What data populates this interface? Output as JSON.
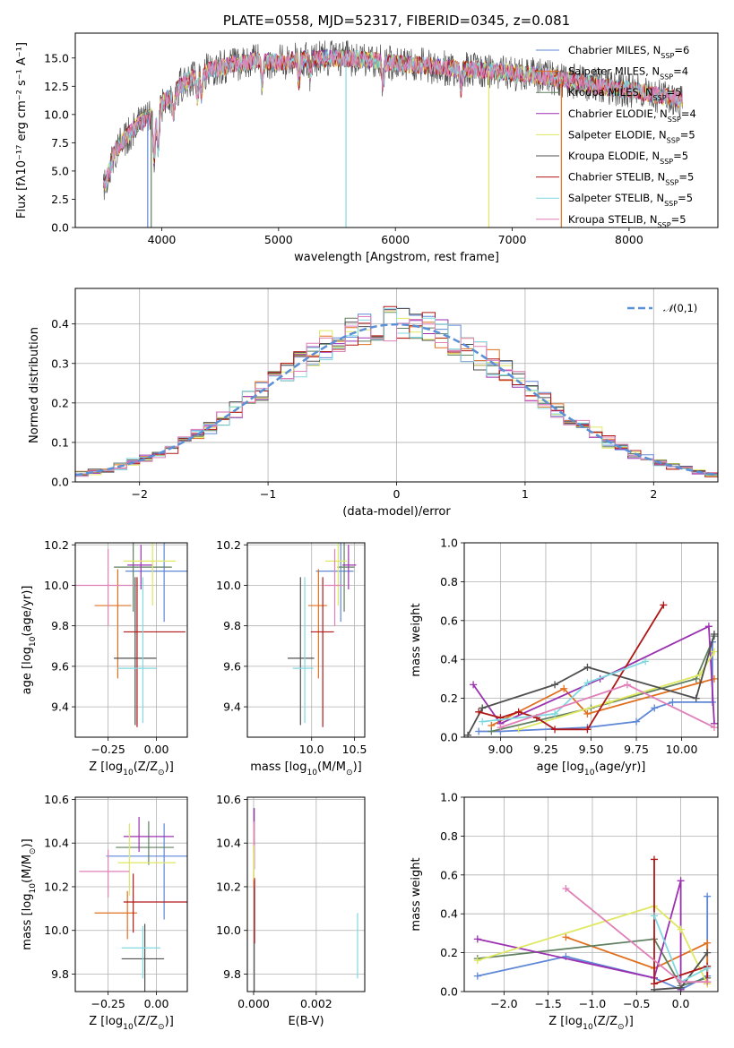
{
  "colors": [
    "#5f87d6",
    "#e07020",
    "#5f7f5f",
    "#9b30b0",
    "#dfe860",
    "#505050",
    "#b01818",
    "#80d8e0",
    "#e080b8"
  ],
  "chart_data": [
    {
      "id": "spectrum",
      "type": "line",
      "title": "PLATE=0558, MJD=52317, FIBERID=0345, z=0.081",
      "xlabel": "wavelength [Angstrom, rest frame]",
      "ylabel": "Flux [fλ10⁻¹⁷ erg cm⁻² s⁻¹ A⁻¹]",
      "xlim": [
        3260,
        8760
      ],
      "ylim": [
        0,
        17.2
      ],
      "xticks": [
        4000,
        5000,
        6000,
        7000,
        8000
      ],
      "yticks": [
        0.0,
        2.5,
        5.0,
        7.5,
        10.0,
        12.5,
        15.0
      ],
      "grid": false,
      "legend_position": "top-right",
      "continuum": {
        "x": [
          3500,
          3600,
          3700,
          3800,
          3950,
          4050,
          4200,
          4400,
          4600,
          4800,
          5000,
          5200,
          5500,
          5800,
          6000,
          6300,
          6600,
          6900,
          7100,
          7300,
          7500,
          7700,
          7900,
          8100,
          8300,
          8450
        ],
        "y": [
          5.8,
          6.8,
          8.0,
          9.2,
          10.2,
          11.5,
          12.9,
          13.9,
          14.4,
          14.8,
          14.6,
          14.9,
          15.0,
          14.8,
          14.5,
          14.3,
          14.0,
          13.8,
          13.6,
          13.3,
          13.0,
          12.6,
          12.3,
          12.0,
          11.6,
          11.3
        ]
      },
      "series": [
        {
          "name": "Chabrier MILES, N$_{SSP}$=6"
        },
        {
          "name": "Salpeter MILES, N$_{SSP}$=4"
        },
        {
          "name": "Kroupa MILES, N$_{SSP}$=5"
        },
        {
          "name": "Chabrier ELODIE, N$_{SSP}$=4"
        },
        {
          "name": "Salpeter ELODIE, N$_{SSP}$=5"
        },
        {
          "name": "Kroupa ELODIE, N$_{SSP}$=5"
        },
        {
          "name": "Chabrier STELIB, N$_{SSP}$=5"
        },
        {
          "name": "Salpeter STELIB, N$_{SSP}$=5"
        },
        {
          "name": "Kroupa STELIB, N$_{SSP}$=5"
        }
      ]
    },
    {
      "id": "residuals",
      "type": "line",
      "xlabel": "(data-model)/error",
      "ylabel": "Normed distribution",
      "xlim": [
        -2.5,
        2.5
      ],
      "ylim": [
        0,
        0.49
      ],
      "xticks": [
        -2,
        -1,
        0,
        1,
        2
      ],
      "yticks": [
        0.0,
        0.1,
        0.2,
        0.3,
        0.4
      ],
      "grid": true,
      "legend_position": "top-right",
      "reference": {
        "name": "$\\mathcal{N}(0,1)$",
        "mean": 0,
        "sigma": 1
      },
      "bin_width": 0.1,
      "hist_x_start": -2.5
    },
    {
      "id": "z-age",
      "type": "scatter",
      "xlabel": "Z [log$_{10}$(Z/Z$_\\odot$)]",
      "ylabel": "age  [log$_{10}$(age/yr)]",
      "xlim": [
        -0.42,
        0.16
      ],
      "ylim": [
        9.25,
        10.21
      ],
      "xticks": [
        -0.25,
        0.0
      ],
      "yticks": [
        9.4,
        9.6,
        9.8,
        10.0,
        10.2
      ],
      "grid": true,
      "points": [
        {
          "x": 0.04,
          "xerr": [
            0.2,
            0.12
          ],
          "y": 10.07,
          "yerr": [
            0.25,
            0.14
          ]
        },
        {
          "x": -0.2,
          "xerr": [
            0.12,
            0.07
          ],
          "y": 9.9,
          "yerr": [
            0.36,
            0.18
          ]
        },
        {
          "x": -0.12,
          "xerr": [
            0.1,
            0.2
          ],
          "y": 10.09,
          "yerr": [
            0.22,
            0.14
          ]
        },
        {
          "x": -0.08,
          "xerr": [
            0.07,
            0.06
          ],
          "y": 10.1,
          "yerr": [
            0.12,
            0.1
          ]
        },
        {
          "x": -0.02,
          "xerr": [
            0.15,
            0.12
          ],
          "y": 10.12,
          "yerr": [
            0.22,
            0.16
          ]
        },
        {
          "x": -0.11,
          "xerr": [
            0.11,
            0.11
          ],
          "y": 9.64,
          "yerr": [
            0.33,
            0.4
          ]
        },
        {
          "x": -0.1,
          "xerr": [
            0.07,
            0.25
          ],
          "y": 9.77,
          "yerr": [
            0.47,
            0.27
          ]
        },
        {
          "x": -0.07,
          "xerr": [
            0.13,
            0.07
          ],
          "y": 9.59,
          "yerr": [
            0.27,
            0.45
          ]
        },
        {
          "x": -0.25,
          "xerr": [
            0.17,
            0.13
          ],
          "y": 10.0,
          "yerr": [
            0.2,
            0.18
          ]
        }
      ]
    },
    {
      "id": "mass-age",
      "type": "scatter",
      "xlabel": "mass [log$_{10}$(M/M$_\\odot$)]",
      "ylabel": "",
      "xlim": [
        9.25,
        10.62
      ],
      "ylim": [
        9.25,
        10.21
      ],
      "xticks": [
        10.0,
        10.5
      ],
      "yticks": [
        9.4,
        9.6,
        9.8,
        10.0,
        10.2
      ],
      "grid": true,
      "points": [
        {
          "x": 10.34,
          "xerr": [
            0.29,
            0.15
          ],
          "y": 10.07,
          "yerr": [
            0.25,
            0.14
          ]
        },
        {
          "x": 10.08,
          "xerr": [
            0.12,
            0.1
          ],
          "y": 9.9,
          "yerr": [
            0.36,
            0.18
          ]
        },
        {
          "x": 10.38,
          "xerr": [
            0.08,
            0.12
          ],
          "y": 10.09,
          "yerr": [
            0.22,
            0.14
          ]
        },
        {
          "x": 10.43,
          "xerr": [
            0.07,
            0.09
          ],
          "y": 10.1,
          "yerr": [
            0.12,
            0.1
          ]
        },
        {
          "x": 10.31,
          "xerr": [
            0.15,
            0.1
          ],
          "y": 10.12,
          "yerr": [
            0.22,
            0.16
          ]
        },
        {
          "x": 9.87,
          "xerr": [
            0.15,
            0.16
          ],
          "y": 9.64,
          "yerr": [
            0.33,
            0.4
          ]
        },
        {
          "x": 10.13,
          "xerr": [
            0.14,
            0.13
          ],
          "y": 9.77,
          "yerr": [
            0.47,
            0.27
          ]
        },
        {
          "x": 9.92,
          "xerr": [
            0.14,
            0.1
          ],
          "y": 9.59,
          "yerr": [
            0.27,
            0.45
          ]
        },
        {
          "x": 10.27,
          "xerr": [
            0.12,
            0.1
          ],
          "y": 10.0,
          "yerr": [
            0.2,
            0.18
          ]
        }
      ]
    },
    {
      "id": "age-weight",
      "type": "line",
      "xlabel": "age  [log$_{10}$(age/yr)]",
      "ylabel": "mass weight",
      "xlim": [
        8.8,
        10.2
      ],
      "ylim": [
        0,
        1.0
      ],
      "xticks": [
        9.0,
        9.25,
        9.5,
        9.75,
        10.0
      ],
      "yticks": [
        0.0,
        0.2,
        0.4,
        0.6,
        0.8,
        1.0
      ],
      "grid": true,
      "series": [
        {
          "x": [
            8.88,
            9.0,
            9.48,
            9.75,
            9.85,
            9.95,
            10.17,
            10.17
          ],
          "y": [
            0.03,
            0.03,
            0.05,
            0.08,
            0.15,
            0.18,
            0.18,
            0.49
          ]
        },
        {
          "x": [
            8.95,
            9.35,
            9.48,
            10.1,
            10.18
          ],
          "y": [
            0.06,
            0.25,
            0.12,
            0.28,
            0.3
          ]
        },
        {
          "x": [
            8.95,
            9.5,
            10.08,
            10.18
          ],
          "y": [
            0.03,
            0.15,
            0.3,
            0.52
          ]
        },
        {
          "x": [
            8.85,
            9.0,
            9.55,
            10.15,
            10.18
          ],
          "y": [
            0.27,
            0.07,
            0.3,
            0.57,
            0.07
          ]
        },
        {
          "x": [
            9.1,
            9.6,
            10.1,
            10.18
          ],
          "y": [
            0.04,
            0.18,
            0.32,
            0.44
          ]
        },
        {
          "x": [
            8.82,
            8.9,
            9.3,
            9.48,
            10.08,
            10.18
          ],
          "y": [
            0.01,
            0.15,
            0.27,
            0.36,
            0.2,
            0.53
          ]
        },
        {
          "x": [
            8.88,
            9.0,
            9.1,
            9.2,
            9.3,
            9.48,
            9.9
          ],
          "y": [
            0.13,
            0.1,
            0.13,
            0.1,
            0.04,
            0.04,
            0.68
          ]
        },
        {
          "x": [
            8.9,
            9.3,
            9.48,
            9.8
          ],
          "y": [
            0.08,
            0.12,
            0.28,
            0.39
          ]
        },
        {
          "x": [
            9.0,
            9.7,
            10.18
          ],
          "y": [
            0.05,
            0.27,
            0.05
          ]
        }
      ]
    },
    {
      "id": "z-mass",
      "type": "scatter",
      "xlabel": "Z [log$_{10}$(Z/Z$_\\odot$)]",
      "ylabel": "mass [log$_{10}$(M/M$_\\odot$)]",
      "xlim": [
        -0.42,
        0.16
      ],
      "ylim": [
        9.72,
        10.61
      ],
      "xticks": [
        -0.25,
        0.0
      ],
      "yticks": [
        9.8,
        10.0,
        10.2,
        10.4,
        10.6
      ],
      "grid": true,
      "points": [
        {
          "x": 0.04,
          "xerr": [
            0.3,
            0.12
          ],
          "y": 10.34,
          "yerr": [
            0.29,
            0.15
          ]
        },
        {
          "x": -0.15,
          "xerr": [
            0.17,
            0.05
          ],
          "y": 10.08,
          "yerr": [
            0.12,
            0.1
          ]
        },
        {
          "x": -0.04,
          "xerr": [
            0.17,
            0.13
          ],
          "y": 10.38,
          "yerr": [
            0.08,
            0.12
          ]
        },
        {
          "x": -0.09,
          "xerr": [
            0.08,
            0.18
          ],
          "y": 10.43,
          "yerr": [
            0.07,
            0.09
          ]
        },
        {
          "x": -0.14,
          "xerr": [
            0.06,
            0.24
          ],
          "y": 10.31,
          "yerr": [
            0.15,
            0.18
          ]
        },
        {
          "x": -0.06,
          "xerr": [
            0.12,
            0.1
          ],
          "y": 9.87,
          "yerr": [
            0.15,
            0.16
          ]
        },
        {
          "x": -0.12,
          "xerr": [
            0.05,
            0.3
          ],
          "y": 10.13,
          "yerr": [
            0.14,
            0.13
          ]
        },
        {
          "x": -0.07,
          "xerr": [
            0.11,
            0.09
          ],
          "y": 9.92,
          "yerr": [
            0.14,
            0.1
          ]
        },
        {
          "x": -0.25,
          "xerr": [
            0.15,
            0.11
          ],
          "y": 10.27,
          "yerr": [
            0.12,
            0.1
          ]
        }
      ]
    },
    {
      "id": "ebv-mass",
      "type": "scatter",
      "xlabel": "E(B-V)",
      "ylabel": "",
      "xlim": [
        -0.0002,
        0.00355
      ],
      "ylim": [
        9.72,
        10.61
      ],
      "xticks": [
        0.0,
        0.002
      ],
      "yticks": [
        9.8,
        10.0,
        10.2,
        10.4,
        10.6
      ],
      "grid": true,
      "points": [
        {
          "x": 1e-05,
          "y": 10.48,
          "yerr": [
            0.12,
            0.08
          ]
        },
        {
          "x": 1e-05,
          "y": 10.35,
          "yerr": [
            0.15,
            0.14
          ]
        },
        {
          "x": 1e-05,
          "y": 10.5,
          "yerr": [
            0.05,
            0.06
          ]
        },
        {
          "x": 2e-05,
          "y": 10.43,
          "yerr": [
            0.15,
            0.13
          ]
        },
        {
          "x": 1e-05,
          "y": 10.36,
          "yerr": [
            0.13,
            0.13
          ]
        },
        {
          "x": 2e-05,
          "y": 9.95,
          "yerr": [
            0.3,
            0.25
          ]
        },
        {
          "x": 3e-05,
          "y": 10.1,
          "yerr": [
            0.16,
            0.14
          ]
        },
        {
          "x": 0.00332,
          "y": 9.93,
          "yerr": [
            0.15,
            0.15
          ]
        },
        {
          "x": 1e-05,
          "y": 10.46,
          "yerr": [
            0.07,
            0.04
          ]
        }
      ]
    },
    {
      "id": "z-weight",
      "type": "line",
      "xlabel": "Z [log$_{10}$(Z/Z$_\\odot$)]",
      "ylabel": "mass weight",
      "xlim": [
        -2.45,
        0.42
      ],
      "ylim": [
        0,
        1.0
      ],
      "xticks": [
        -2.0,
        -1.5,
        -1.0,
        -0.5,
        0.0
      ],
      "yticks": [
        0.0,
        0.2,
        0.4,
        0.6,
        0.8,
        1.0
      ],
      "grid": true,
      "series": [
        {
          "x": [
            -2.3,
            -1.3,
            -0.3,
            0.0,
            0.3,
            0.3
          ],
          "y": [
            0.08,
            0.18,
            0.07,
            0.01,
            0.08,
            0.49
          ]
        },
        {
          "x": [
            -1.3,
            -0.3,
            0.3,
            0.3
          ],
          "y": [
            0.28,
            0.12,
            0.25,
            0.04
          ]
        },
        {
          "x": [
            -2.3,
            -0.3,
            0.0,
            0.3
          ],
          "y": [
            0.17,
            0.27,
            0.03,
            0.07
          ]
        },
        {
          "x": [
            -2.3,
            -0.3,
            0.0,
            0.0
          ],
          "y": [
            0.27,
            0.07,
            0.57,
            0.01
          ]
        },
        {
          "x": [
            -2.3,
            -0.3,
            0.0,
            0.3
          ],
          "y": [
            0.16,
            0.44,
            0.32,
            0.04
          ]
        },
        {
          "x": [
            -0.3,
            0.0,
            0.3
          ],
          "y": [
            0.01,
            0.02,
            0.2
          ]
        },
        {
          "x": [
            -0.3,
            -0.3,
            0.3,
            0.3
          ],
          "y": [
            0.68,
            0.04,
            0.13,
            0.05
          ]
        },
        {
          "x": [
            -0.3,
            0.0,
            0.3
          ],
          "y": [
            0.39,
            0.05,
            0.12
          ]
        },
        {
          "x": [
            -1.3,
            0.0,
            0.3
          ],
          "y": [
            0.53,
            0.05,
            0.05
          ]
        }
      ]
    }
  ]
}
